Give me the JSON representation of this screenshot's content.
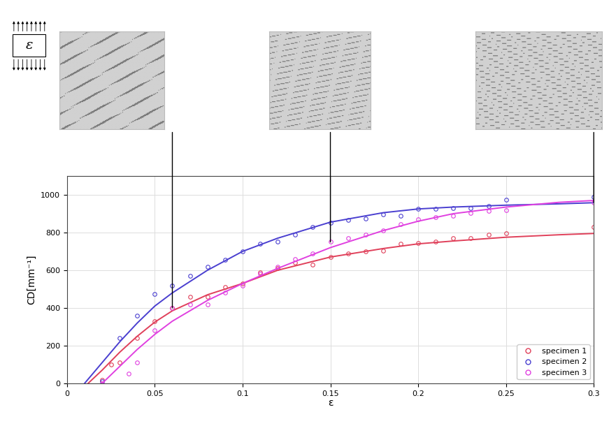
{
  "chart_data": {
    "type": "scatter",
    "x_label": "ε",
    "y_label": "CD[mm⁻¹]",
    "annotations": [
      "ε"
    ],
    "snapshots": [
      0.06,
      0.15,
      0.3
    ],
    "xlim": [
      0,
      0.3
    ],
    "xticks": [
      0,
      0.05,
      0.1,
      0.15,
      0.2,
      0.25,
      0.3
    ],
    "ylim": [
      0,
      1100
    ],
    "yticks": [
      0,
      200,
      400,
      600,
      800,
      1000
    ],
    "grid": true,
    "legend": "lower right",
    "series": [
      {
        "name": "specimen 1",
        "color": "#e0405a",
        "marker": "o",
        "x": [
          0.02,
          0.025,
          0.03,
          0.04,
          0.05,
          0.06,
          0.07,
          0.08,
          0.09,
          0.1,
          0.11,
          0.12,
          0.13,
          0.14,
          0.15,
          0.16,
          0.17,
          0.18,
          0.19,
          0.2,
          0.21,
          0.22,
          0.23,
          0.24,
          0.25,
          0.3
        ],
        "values": [
          20,
          100,
          110,
          240,
          330,
          400,
          460,
          460,
          510,
          530,
          590,
          610,
          640,
          630,
          670,
          690,
          700,
          705,
          740,
          745,
          750,
          770,
          770,
          790,
          795,
          830
        ],
        "fit": {
          "x": [
            0.012,
            0.02,
            0.03,
            0.04,
            0.05,
            0.06,
            0.08,
            0.1,
            0.12,
            0.15,
            0.18,
            0.2,
            0.22,
            0.25,
            0.28,
            0.3
          ],
          "values": [
            0,
            70,
            165,
            250,
            325,
            385,
            470,
            530,
            600,
            670,
            715,
            740,
            755,
            775,
            788,
            795
          ]
        }
      },
      {
        "name": "specimen 2",
        "color": "#4a3fd0",
        "marker": "o",
        "x": [
          0.02,
          0.03,
          0.04,
          0.05,
          0.06,
          0.07,
          0.08,
          0.09,
          0.1,
          0.11,
          0.12,
          0.13,
          0.14,
          0.15,
          0.16,
          0.17,
          0.18,
          0.19,
          0.2,
          0.21,
          0.22,
          0.23,
          0.24,
          0.25,
          0.3
        ],
        "values": [
          10,
          240,
          360,
          475,
          520,
          570,
          620,
          655,
          700,
          740,
          750,
          790,
          830,
          850,
          865,
          875,
          895,
          890,
          925,
          925,
          930,
          930,
          940,
          975,
          990
        ],
        "fit": {
          "x": [
            0.01,
            0.02,
            0.03,
            0.04,
            0.05,
            0.06,
            0.08,
            0.1,
            0.12,
            0.15,
            0.18,
            0.2,
            0.22,
            0.25,
            0.28,
            0.3
          ],
          "values": [
            0,
            110,
            220,
            320,
            410,
            480,
            600,
            700,
            770,
            855,
            905,
            925,
            935,
            945,
            952,
            958
          ]
        }
      },
      {
        "name": "specimen 3",
        "color": "#e040e0",
        "marker": "o",
        "x": [
          0.02,
          0.035,
          0.04,
          0.05,
          0.06,
          0.07,
          0.08,
          0.09,
          0.1,
          0.11,
          0.12,
          0.13,
          0.14,
          0.15,
          0.16,
          0.17,
          0.18,
          0.19,
          0.2,
          0.21,
          0.22,
          0.23,
          0.24,
          0.25,
          0.3
        ],
        "values": [
          0,
          50,
          110,
          280,
          400,
          420,
          420,
          480,
          520,
          580,
          620,
          660,
          690,
          750,
          770,
          790,
          810,
          845,
          870,
          880,
          890,
          905,
          915,
          920,
          960
        ],
        "fit": {
          "x": [
            0.02,
            0.03,
            0.04,
            0.05,
            0.06,
            0.08,
            0.1,
            0.12,
            0.15,
            0.18,
            0.2,
            0.22,
            0.25,
            0.28,
            0.3
          ],
          "values": [
            0,
            90,
            180,
            260,
            330,
            440,
            530,
            610,
            720,
            810,
            860,
            900,
            935,
            960,
            970
          ]
        }
      }
    ]
  }
}
